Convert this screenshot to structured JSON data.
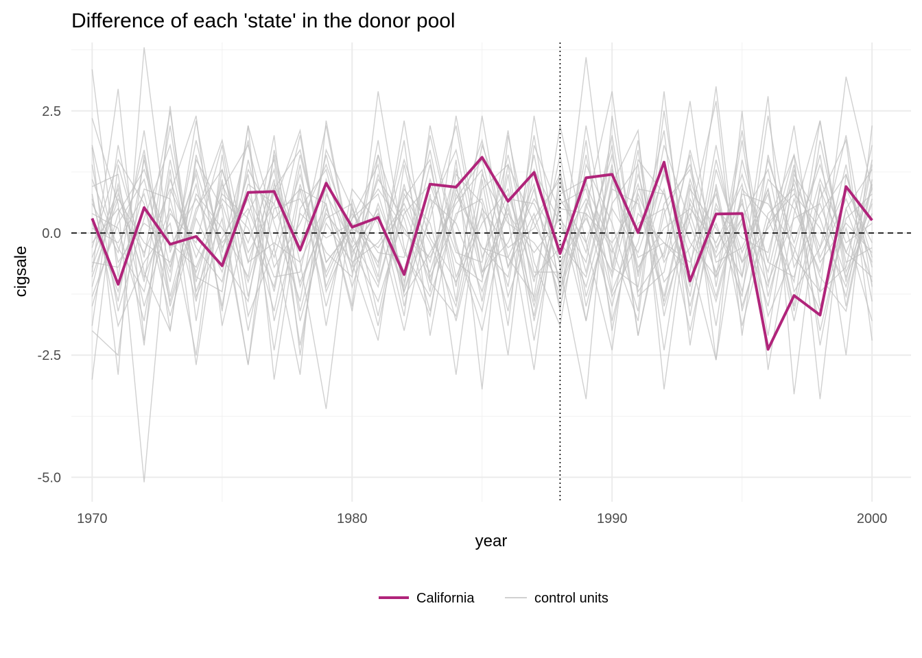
{
  "chart_data": {
    "type": "line",
    "title": "Difference of each 'state' in the donor pool",
    "xlabel": "year",
    "ylabel": "cigsale",
    "xlim": [
      1969.2,
      2001.5
    ],
    "ylim": [
      -5.5,
      3.9
    ],
    "x_ticks": [
      "1970",
      "1980",
      "1990",
      "2000"
    ],
    "y_ticks": [
      "2.5",
      "0.0",
      "-2.5",
      "-5.0"
    ],
    "grid": true,
    "legend_position": "bottom",
    "reference_lines": {
      "horizontal_y": 0,
      "horizontal_style": "dashed",
      "vertical_x": 1988,
      "vertical_style": "dotted"
    },
    "colors": {
      "treated": "#b0247a",
      "controls": "#c0c0c0"
    },
    "x": [
      1970,
      1971,
      1972,
      1973,
      1974,
      1975,
      1976,
      1977,
      1978,
      1979,
      1980,
      1981,
      1982,
      1983,
      1984,
      1985,
      1986,
      1987,
      1988,
      1989,
      1990,
      1991,
      1992,
      1993,
      1994,
      1995,
      1996,
      1997,
      1998,
      1999,
      2000
    ],
    "series": [
      {
        "name": "California",
        "role": "treated",
        "values": [
          0.3,
          -1.05,
          0.52,
          -0.23,
          -0.07,
          -0.67,
          0.83,
          0.85,
          -0.35,
          1.02,
          0.12,
          0.32,
          -0.85,
          1.0,
          0.94,
          1.55,
          0.65,
          1.24,
          -0.42,
          1.13,
          1.2,
          0.01,
          1.45,
          -0.98,
          0.39,
          0.4,
          -2.38,
          -1.28,
          -1.68,
          0.95,
          0.26
        ]
      },
      {
        "name": "control units",
        "role": "control",
        "values": [
          [
            3.35,
            -0.9,
            2.1,
            -1.5,
            0.4,
            1.9,
            -0.6,
            1.1,
            -2.3,
            0.8,
            -0.2,
            1.6,
            -1.2,
            0.3,
            2.2,
            -0.8,
            0.5,
            -1.7,
            1.0,
            -0.4,
            1.8,
            -2.1,
            0.6,
            1.3,
            -0.9,
            0.2,
            -1.5,
            1.1,
            -0.3,
            2.0,
            -1.1
          ],
          [
            -3.0,
            1.4,
            -0.5,
            2.5,
            -1.2,
            0.3,
            -2.7,
            0.9,
            1.7,
            -0.6,
            0.1,
            -1.9,
            0.7,
            1.5,
            -1.4,
            2.4,
            -0.7,
            0.4,
            -1.3,
            1.9,
            -2.0,
            0.8,
            -0.5,
            1.6,
            -2.6,
            0.9,
            0.3,
            -1.0,
            2.3,
            -0.8,
            0.6
          ],
          [
            1.75,
            -2.9,
            3.8,
            -0.4,
            1.2,
            -1.6,
            2.2,
            -3.0,
            0.5,
            1.3,
            -0.8,
            0.4,
            -1.1,
            2.0,
            -0.3,
            -1.6,
            1.4,
            0.2,
            -0.9,
            3.6,
            -0.7,
            1.9,
            -1.5,
            0.3,
            2.7,
            -2.1,
            1.6,
            -0.5,
            -1.2,
            3.2,
            0.9
          ],
          [
            -0.8,
            2.95,
            -2.2,
            1.3,
            -2.7,
            0.9,
            1.8,
            -0.3,
            -2.9,
            2.3,
            -0.5,
            1.1,
            0.3,
            -1.6,
            1.2,
            0.6,
            -2.5,
            1.8,
            0.4,
            -1.8,
            1.0,
            2.1,
            -3.2,
            0.7,
            -0.4,
            1.2,
            -0.6,
            2.2,
            -1.5,
            0.1,
            -1.8
          ],
          [
            2.35,
            0.6,
            -5.1,
            0.8,
            2.4,
            -1.9,
            0.4,
            1.5,
            -1.8,
            0.2,
            -0.6,
            -2.2,
            1.4,
            -0.9,
            0.3,
            1.9,
            -0.5,
            -1.3,
            2.2,
            -0.2,
            -2.4,
            1.5,
            0.8,
            -1.1,
            1.8,
            -0.9,
            2.8,
            -3.3,
            1.0,
            -2.5,
            2.2
          ],
          [
            -2.0,
            -2.5,
            1.6,
            -2.0,
            1.5,
            0.5,
            -2.7,
            1.7,
            -0.6,
            -3.6,
            0.7,
            -0.9,
            2.3,
            -1.0,
            -1.7,
            0.9,
            1.4,
            -1.8,
            0.6,
            0.9,
            -1.3,
            -0.2,
            2.1,
            -2.3,
            1.0,
            -1.5,
            0.2,
            1.6,
            -3.4,
            1.2,
            -0.7
          ],
          [
            0.95,
            1.2,
            -2.3,
            2.6,
            -1.8,
            1.3,
            -0.4,
            0.6,
            2.1,
            -1.1,
            0.3,
            1.4,
            -1.5,
            0.8,
            -2.9,
            1.1,
            -1.9,
            2.4,
            -0.7,
            -3.4,
            2.4,
            -0.9,
            1.3,
            -0.5,
            -2.6,
            2.5,
            -2.8,
            0.4,
            2.3,
            -1.0,
            1.5
          ],
          [
            -1.3,
            0.2,
            1.1,
            -1.0,
            2.3,
            -0.6,
            1.2,
            -2.4,
            0.9,
            0.6,
            -1.5,
            2.9,
            -0.3,
            -1.7,
            1.5,
            -3.2,
            2.0,
            -0.6,
            -1.9,
            1.4,
            0.2,
            -1.6,
            2.9,
            -1.7,
            1.3,
            -0.4,
            0.8,
            -1.8,
            0.7,
            1.9,
            -2.2
          ],
          [
            1.4,
            -1.6,
            0.3,
            1.8,
            -0.9,
            -1.2,
            2.2,
            0.2,
            -1.4,
            1.7,
            0.5,
            -0.7,
            1.9,
            -2.1,
            0.8,
            -0.3,
            -0.9,
            1.6,
            -1.1,
            0.5,
            2.9,
            -1.2,
            -0.4,
            2.7,
            -1.1,
            1.9,
            -1.3,
            0.7,
            -0.9,
            -1.6,
            1.0
          ],
          [
            -0.5,
            0.9,
            -1.5,
            0.4,
            -0.2,
            1.8,
            -1.3,
            1.0,
            -0.2,
            0.9,
            -1.1,
            0.6,
            -0.8,
            1.4,
            -1.1,
            1.8,
            0.3,
            -2.8,
            1.3,
            -1.5,
            0.6,
            1.4,
            -2.4,
            0.9,
            0.1,
            -0.9,
            1.5,
            -0.2,
            1.4,
            -0.4,
            -0.9
          ],
          [
            0.6,
            -0.4,
            1.7,
            -1.3,
            0.8,
            0.1,
            -0.9,
            2.0,
            -2.5,
            1.1,
            -0.3,
            -1.4,
            0.4,
            1.0,
            -0.6,
            -1.0,
            2.1,
            -1.4,
            0.8,
            1.1,
            -1.8,
            0.4,
            -0.2,
            -0.8,
            3.0,
            -1.6,
            0.4,
            0.9,
            -2.0,
            0.3,
            0.8
          ],
          [
            -1.9,
            1.8,
            -0.8,
            -2.0,
            1.6,
            -0.3,
            0.7,
            -1.2,
            1.4,
            -1.9,
            0.9,
            0.2,
            -2.0,
            0.5,
            1.7,
            -0.8,
            -0.2,
            1.0,
            -1.6,
            2.2,
            -0.7,
            -1.1,
            1.8,
            0.2,
            -1.4,
            0.7,
            -2.1,
            1.2,
            0.3,
            -1.3,
            1.4
          ],
          [
            0.2,
            -1.2,
            0.9,
            0.7,
            -1.4,
            1.1,
            -2.0,
            0.5,
            0.7,
            -0.4,
            -0.9,
            1.9,
            -1.3,
            -0.4,
            0.6,
            1.3,
            -1.3,
            0.3,
            1.1,
            -0.8,
            1.4,
            -2.1,
            0.4,
            1.4,
            -0.6,
            -0.3,
            0.9,
            -1.5,
            1.9,
            -0.6,
            -0.3
          ],
          [
            -0.9,
            0.7,
            -0.2,
            -0.6,
            1.0,
            -1.5,
            1.5,
            -0.7,
            0.2,
            1.4,
            -0.1,
            -1.1,
            1.0,
            -1.2,
            2.4,
            -0.5,
            0.8,
            -0.9,
            -0.3,
            0.7,
            -0.4,
            1.0,
            -1.0,
            -0.3,
            0.8,
            -1.2,
            1.1,
            0.5,
            -0.8,
            1.4,
            -1.4
          ],
          [
            1.1,
            -0.3,
            -1.2,
            1.1,
            -0.5,
            0.8,
            0.3,
            -1.6,
            1.0,
            -0.8,
            0.4,
            -0.4,
            -0.5,
            1.7,
            -0.9,
            0.4,
            -1.6,
            1.3,
            0.2,
            -1.1,
            0.9,
            0.6,
            -1.4,
            1.0,
            -1.9,
            1.5,
            -0.6,
            -0.9,
            1.1,
            -0.2,
            0.2
          ],
          [
            -0.3,
            1.5,
            0.6,
            -1.7,
            0.3,
            -0.8,
            1.0,
            0.6,
            -1.0,
            0.3,
            0.6,
            -1.7,
            0.8,
            -0.2,
            -1.5,
            1.2,
            0.2,
            -0.2,
            -1.0,
            1.6,
            -1.2,
            0.2,
            0.5,
            -2.0,
            0.5,
            -0.1,
            -0.4,
            1.6,
            -0.5,
            0.7,
            -0.6
          ],
          [
            0.8,
            -1.9,
            -0.6,
            0.2,
            -2.5,
            1.6,
            -1.7,
            -0.3,
            2.0,
            -1.2,
            0.1,
            0.9,
            0.1,
            -0.8,
            1.0,
            -1.4,
            1.2,
            -2.2,
            0.7,
            -0.2,
            1.6,
            -0.7,
            0.1,
            0.5,
            -0.2,
            1.0,
            -1.7,
            -0.4,
            1.6,
            -1.5,
            1.1
          ],
          [
            -1.5,
            0.4,
            1.3,
            -0.3,
            0.7,
            -0.2,
            0.5,
            -0.9,
            -0.8,
            1.6,
            -0.4,
            0.5,
            -1.7,
            2.2,
            -0.2,
            -2.0,
            0.7,
            0.6,
            -0.6,
            0.3,
            -0.8,
            1.7,
            -1.7,
            0.6,
            -0.8,
            0.3,
            1.3,
            -1.2,
            -0.3,
            0.9,
            -0.2
          ],
          [
            0.4,
            0.1,
            -1.8,
            1.5,
            -1.0,
            1.0,
            -0.2,
            1.3,
            -1.6,
            0.5,
            -0.7,
            1.2,
            -0.4,
            -1.3,
            0.4,
            0.7,
            -1.1,
            2.0,
            -1.2,
            0.4,
            -1.5,
            0.9,
            0.8,
            -1.3,
            1.5,
            -0.6,
            0.1,
            1.0,
            -1.2,
            -0.7,
            1.8
          ],
          [
            -0.6,
            -0.7,
            0.5,
            -0.8,
            1.9,
            -0.4,
            1.9,
            -1.8,
            0.4,
            -0.1,
            0.2,
            -0.6,
            1.5,
            -0.1,
            -1.0,
            0.2,
            0.9,
            -1.0,
            1.6,
            -1.3,
            0.5,
            -0.4,
            1.2,
            -0.2,
            -0.9,
            2.1,
            -1.0,
            0.3,
            0.6,
            -0.9,
            0.4
          ],
          [
            1.8,
            -0.6,
            0.2,
            -0.2,
            -0.7,
            0.6,
            -1.0,
            0.9,
            -0.3,
            2.2,
            -0.6,
            -0.2,
            0.6,
            -0.6,
            1.3,
            -0.9,
            0.4,
            -0.4,
            0.3,
            -0.6,
            2.0,
            -1.3,
            -0.8,
            1.7,
            -0.3,
            0.6,
            -0.8,
            1.4,
            -2.3,
            0.5,
            -1.0
          ],
          [
            -1.1,
            1.0,
            -1.0,
            2.2,
            -1.3,
            -0.1,
            0.8,
            -0.5,
            1.2,
            -0.9,
            0.3,
            0.8,
            -1.0,
            1.1,
            -0.4,
            -0.6,
            1.6,
            -0.8,
            -0.8,
            1.0,
            -0.3,
            -1.8,
            2.5,
            -1.0,
            0.2,
            -1.3,
            2.4,
            -0.7,
            0.4,
            1.2,
            -0.5
          ],
          [
            0.1,
            -0.2,
            0.8,
            -1.4,
            0.5,
            1.3,
            -0.6,
            -0.2,
            -0.6,
            0.6,
            -1.6,
            1.6,
            0.0,
            -0.5,
            0.7,
            1.5,
            -0.7,
            0.9,
            -1.5,
            0.6,
            -0.9,
            1.2,
            -0.6,
            0.4,
            -1.3,
            0.8,
            0.6,
            -0.3,
            -1.6,
            0.5,
            1.3
          ],
          [
            -0.2,
            0.5,
            -0.4,
            0.9,
            -0.3,
            -1.0,
            1.3,
            0.3,
            0.9,
            -1.5,
            0.5,
            -1.0,
            0.9,
            0.2,
            -1.8,
            0.5,
            -0.3,
            0.1,
            1.2,
            -1.8,
            1.1,
            -0.5,
            -0.2,
            -0.6,
            0.9,
            -1.9,
            0.2,
            0.8,
            0.1,
            -1.1,
            0.7
          ],
          [
            0.7,
            -1.4,
            1.5,
            -0.7,
            1.3,
            -0.5,
            -1.4,
            1.6,
            -1.1,
            0.4,
            -0.3,
            0.4,
            -1.2,
            0.7,
            0.2,
            -1.2,
            0.6,
            -1.5,
            0.5,
            0.4,
            -0.2,
            0.7,
            -1.3,
            1.1,
            -0.5,
            0.3,
            -1.1,
            1.3,
            -0.6,
            0.2,
            -0.4
          ],
          [
            -0.7,
            0.8,
            -0.9,
            0.5,
            -0.8,
            0.7,
            0.1,
            -1.1,
            1.6,
            -0.6,
            0.1,
            -0.3,
            0.5,
            -1.0,
            0.9,
            -0.3,
            -0.5,
            0.7,
            -0.2,
            -0.9,
            1.3,
            -0.8,
            0.9,
            -1.5,
            0.6,
            -0.6,
            0.9,
            -1.6,
            0.9,
            -0.4,
            0.9
          ]
        ]
      }
    ]
  }
}
